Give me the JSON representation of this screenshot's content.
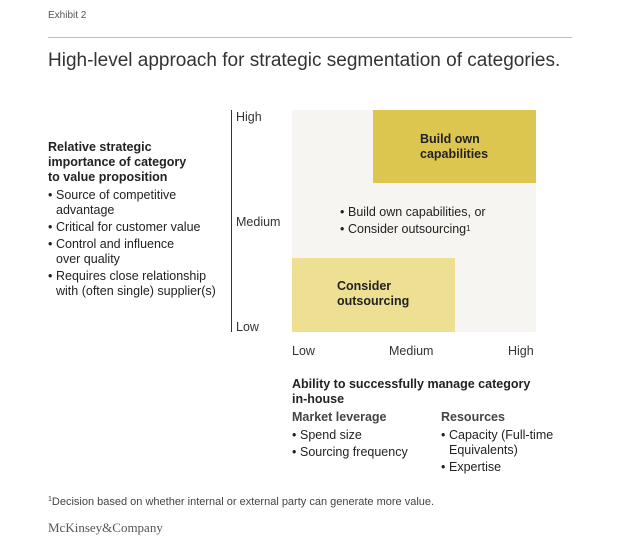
{
  "header": {
    "exhibit": "Exhibit 2",
    "title": "High-level approach for strategic segmentation of categories."
  },
  "y_axis": {
    "title_lines": [
      "Relative strategic",
      "importance of category",
      "to value proposition"
    ],
    "bullets": [
      {
        "lines": [
          "Source of competitive",
          "advantage"
        ]
      },
      {
        "lines": [
          "Critical for customer value"
        ]
      },
      {
        "lines": [
          "Control and influence",
          "over quality"
        ]
      },
      {
        "lines": [
          "Requires close relationship",
          "with (often single) supplier(s)"
        ]
      }
    ],
    "ticks": [
      "High",
      "Medium",
      "Low"
    ]
  },
  "x_axis": {
    "ticks": [
      "Low",
      "Medium",
      "High"
    ],
    "title_lines": [
      "Ability to successfully manage category",
      "in-house"
    ],
    "groups": [
      {
        "heading": "Market leverage",
        "bullets": [
          {
            "lines": [
              "Spend size"
            ]
          },
          {
            "lines": [
              "Sourcing frequency"
            ]
          }
        ]
      },
      {
        "heading": "Resources",
        "bullets": [
          {
            "lines": [
              "Capacity (Full-time",
              "Equivalents)"
            ]
          },
          {
            "lines": [
              "Expertise"
            ]
          }
        ]
      }
    ]
  },
  "quadrants": {
    "high_box": {
      "lines": [
        "Build own",
        "capabilities"
      ],
      "color": "#dcc650"
    },
    "low_box": {
      "lines": [
        "Consider",
        "outsourcing"
      ],
      "color": "#ede092"
    },
    "middle": {
      "items": [
        "Build own capabilities, or",
        "Consider outsourcing"
      ],
      "footnote_mark": "1"
    },
    "background_color": "#f6f5f1"
  },
  "footer": {
    "footnote_mark": "1",
    "footnote": "Decision based on whether internal or external party can generate more value.",
    "brand": "McKinsey&Company"
  }
}
